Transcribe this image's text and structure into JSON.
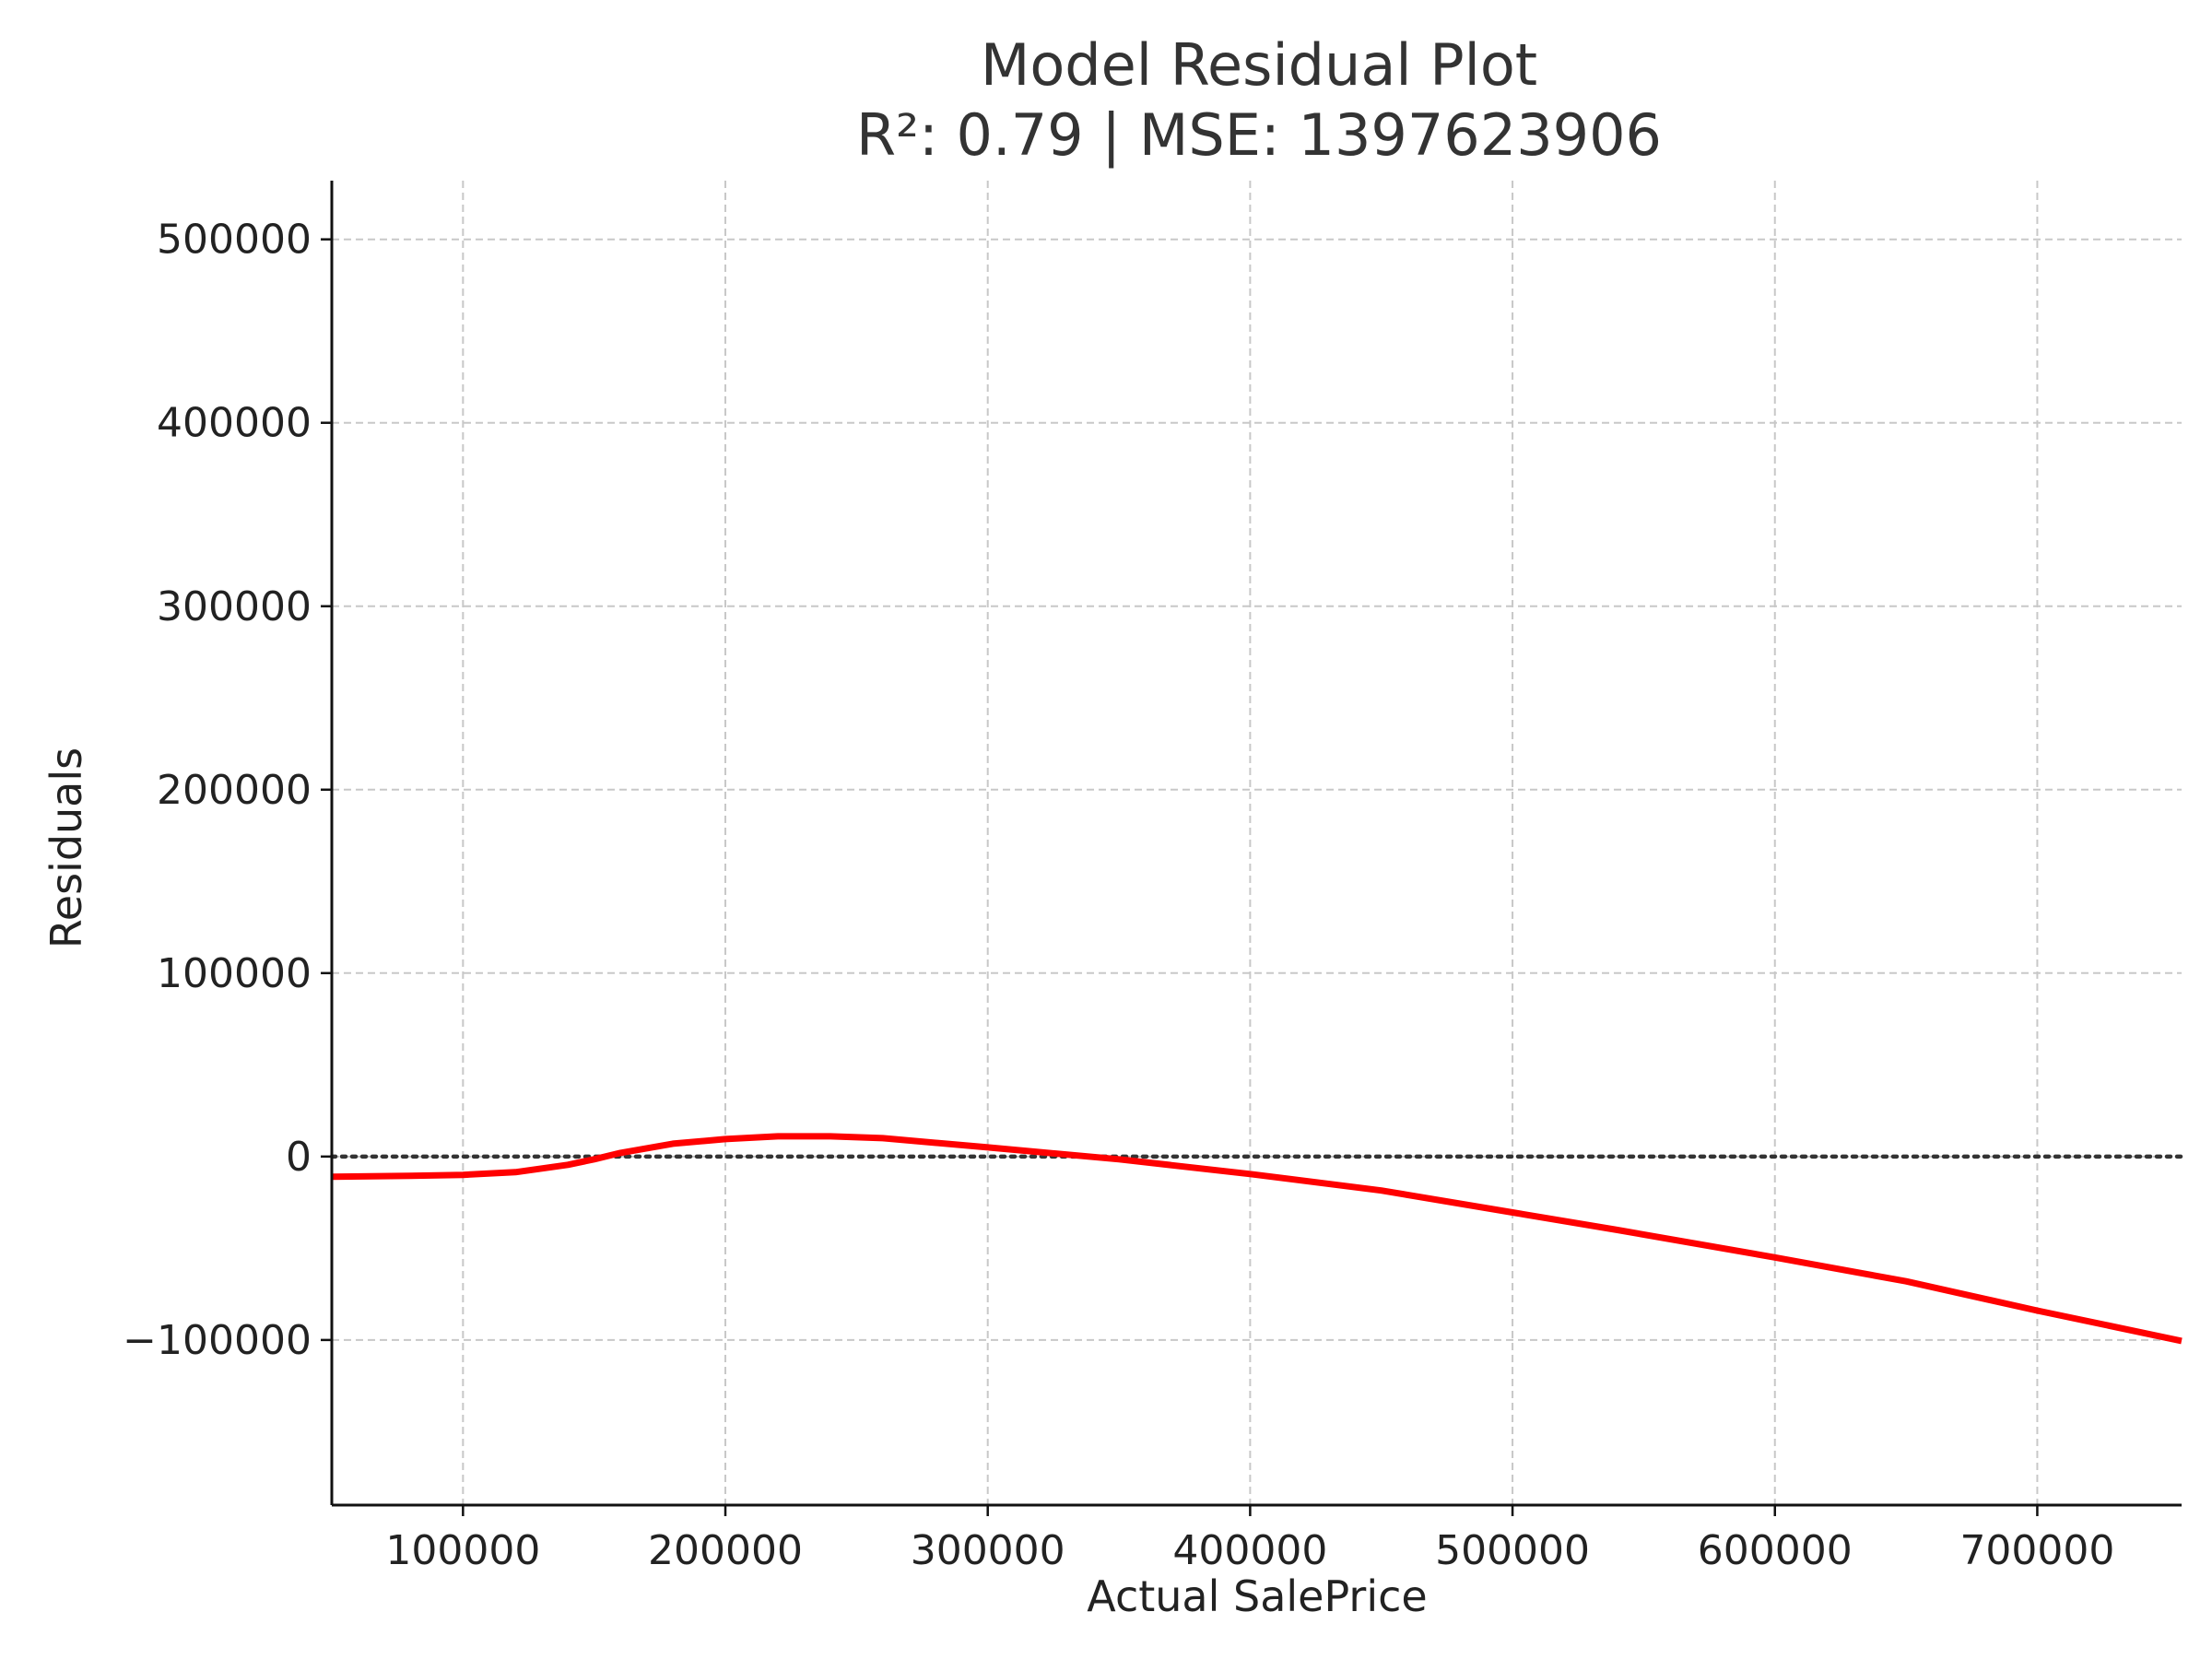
{
  "chart_data": {
    "type": "line",
    "title": "Model Residual Plot",
    "subtitle": "R²: 0.79 | MSE: 1397623906",
    "xlabel": "Actual SalePrice",
    "ylabel": "Residuals",
    "xlim": [
      50000,
      755000
    ],
    "ylim": [
      -190000,
      532000
    ],
    "xticks": [
      100000,
      200000,
      300000,
      400000,
      500000,
      600000,
      700000
    ],
    "yticks": [
      -100000,
      0,
      100000,
      200000,
      300000,
      400000,
      500000
    ],
    "xtick_labels": [
      "100000",
      "200000",
      "300000",
      "400000",
      "500000",
      "600000",
      "700000"
    ],
    "ytick_labels": [
      "−100000",
      "0",
      "100000",
      "200000",
      "300000",
      "400000",
      "500000"
    ],
    "grid": true,
    "reference_line": {
      "y": 0,
      "style": "dotted",
      "color": "#333333"
    },
    "series": [
      {
        "color": "#ff0000",
        "x": [
          50000,
          80000,
          100000,
          120000,
          140000,
          150000,
          160000,
          170000,
          180000,
          200000,
          220000,
          240000,
          260000,
          300000,
          350000,
          400000,
          450000,
          500000,
          540000,
          600000,
          650000,
          700000,
          755000
        ],
        "y": [
          -11000,
          -10500,
          -10000,
          -8500,
          -4500,
          -1500,
          2000,
          4500,
          7000,
          9500,
          11000,
          11000,
          10000,
          5000,
          -1500,
          -9500,
          -18500,
          -30500,
          -40000,
          -55000,
          -68000,
          -84000,
          -100500
        ]
      }
    ]
  }
}
